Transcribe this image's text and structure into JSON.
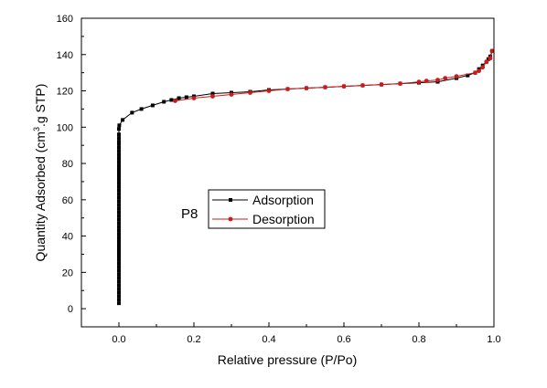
{
  "chart_data": {
    "type": "line",
    "xlabel": "Relative pressure (P/Po)",
    "ylabel_parts": [
      "Quantity Adsorbed (cm",
      "3",
      ".g STP)"
    ],
    "xlim": [
      -0.1,
      1.0
    ],
    "ylim": [
      -10,
      160
    ],
    "xticks": [
      0.0,
      0.2,
      0.4,
      0.6,
      0.8,
      1.0
    ],
    "xtick_labels": [
      "0.0",
      "0.2",
      "0.4",
      "0.6",
      "0.8",
      "1.0"
    ],
    "yticks": [
      0,
      20,
      40,
      60,
      80,
      100,
      120,
      140,
      160
    ],
    "ytick_labels": [
      "0",
      "20",
      "40",
      "60",
      "80",
      "100",
      "120",
      "140",
      "160"
    ],
    "grid": false,
    "legend_placement": "center",
    "annotation": "P8",
    "series": [
      {
        "name": "Adsorption",
        "color": "#000000",
        "marker": "square",
        "x": [
          0.0,
          0.0,
          0.0,
          0.0,
          0.0,
          0.0,
          0.0,
          0.0,
          0.0,
          0.0,
          0.0,
          0.0,
          0.0,
          0.0,
          0.0,
          0.0,
          0.0,
          0.0,
          0.0,
          0.0,
          0.0,
          0.0,
          0.0,
          0.0,
          0.0,
          0.0,
          0.0,
          0.0,
          0.0,
          0.0,
          0.0,
          0.0,
          0.0,
          0.0,
          0.0,
          0.0,
          0.0,
          0.0,
          0.0,
          0.0,
          0.0,
          0.0,
          0.0,
          0.0,
          0.0,
          0.0,
          0.0,
          0.0,
          0.0,
          0.001,
          0.01,
          0.035,
          0.06,
          0.09,
          0.12,
          0.14,
          0.16,
          0.18,
          0.2,
          0.25,
          0.3,
          0.35,
          0.4,
          0.45,
          0.5,
          0.55,
          0.6,
          0.65,
          0.7,
          0.75,
          0.8,
          0.85,
          0.9,
          0.93,
          0.95,
          0.96,
          0.97,
          0.98,
          0.985,
          0.99,
          0.995
        ],
        "y": [
          3,
          5,
          7,
          9,
          11,
          13,
          15,
          17,
          19,
          21,
          23,
          25,
          27,
          29,
          31,
          33,
          35,
          37,
          39,
          41,
          43,
          45,
          47,
          49,
          51,
          53,
          55,
          57,
          59,
          61,
          63,
          65,
          67,
          69,
          71,
          73,
          75,
          77,
          79,
          81,
          83,
          85,
          87,
          89,
          91,
          92,
          94,
          96,
          99,
          101,
          104,
          108,
          110,
          112,
          114,
          115,
          116,
          116.5,
          117,
          118.5,
          119,
          119.5,
          120.5,
          121,
          121.5,
          122,
          122.5,
          123,
          123.5,
          124,
          124.5,
          125,
          127,
          128.5,
          130,
          132,
          134,
          136,
          137.5,
          139,
          142
        ]
      },
      {
        "name": "Desorption",
        "color": "#cc1a1a",
        "marker": "circle",
        "x": [
          0.995,
          0.99,
          0.98,
          0.97,
          0.96,
          0.95,
          0.9,
          0.87,
          0.85,
          0.82,
          0.8,
          0.75,
          0.7,
          0.65,
          0.6,
          0.55,
          0.5,
          0.45,
          0.4,
          0.35,
          0.3,
          0.25,
          0.2,
          0.15
        ],
        "y": [
          142,
          138,
          136,
          133,
          131,
          130,
          128,
          127,
          126,
          125.5,
          125,
          124,
          123.5,
          123,
          122.5,
          122,
          121.5,
          121,
          120,
          119,
          118,
          117,
          116,
          114.5
        ]
      }
    ]
  }
}
